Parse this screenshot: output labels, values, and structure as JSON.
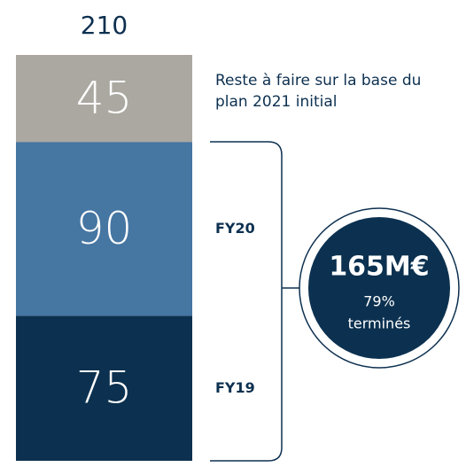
{
  "chart_data": {
    "type": "bar",
    "total": 210,
    "ylim": [
      0,
      210
    ],
    "series": [
      {
        "name": "FY19",
        "color": "#0c3150",
        "values": [
          75
        ]
      },
      {
        "name": "FY20",
        "color": "#4676a2",
        "values": [
          90
        ]
      },
      {
        "name": "Reste à faire sur la base du plan 2021 initial",
        "color": "#aba8a1",
        "values": [
          45
        ]
      }
    ],
    "callout": {
      "title": "165M€",
      "lines": [
        "79%",
        "terminés"
      ]
    }
  }
}
